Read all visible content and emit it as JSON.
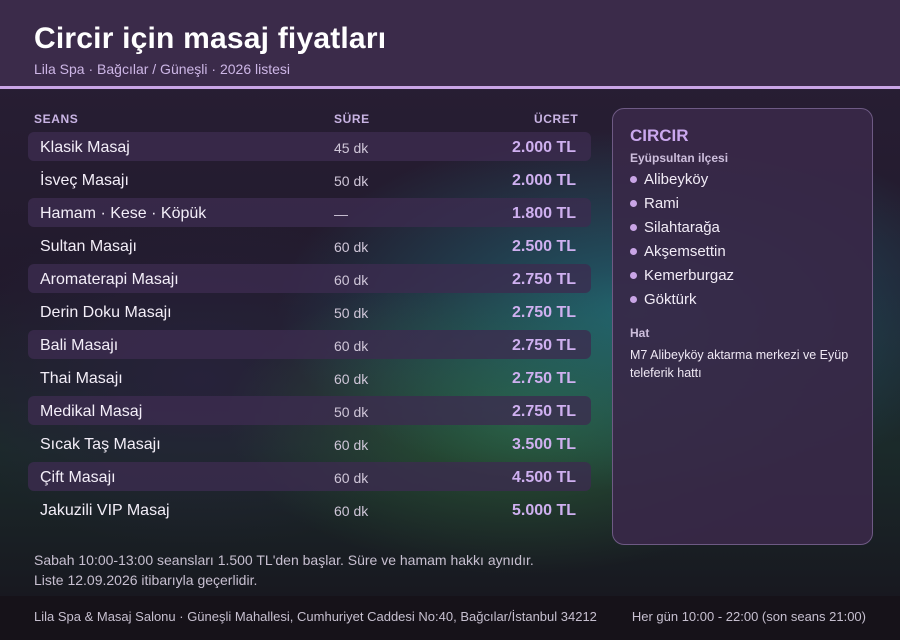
{
  "header": {
    "title": "Circir için masaj fiyatları",
    "subtitle": "Lila Spa · Bağcılar / Güneşli · 2026 listesi"
  },
  "table": {
    "columns": [
      "SEANS",
      "SÜRE",
      "ÜCRET"
    ],
    "rows": [
      {
        "name": "Klasik Masaj",
        "duration": "45 dk",
        "price": "2.000 TL"
      },
      {
        "name": "İsveç Masajı",
        "duration": "50 dk",
        "price": "2.000 TL"
      },
      {
        "name": "Hamam · Kese · Köpük",
        "duration": "—",
        "price": "1.800 TL"
      },
      {
        "name": "Sultan Masajı",
        "duration": "60 dk",
        "price": "2.500 TL"
      },
      {
        "name": "Aromaterapi Masajı",
        "duration": "60 dk",
        "price": "2.750 TL"
      },
      {
        "name": "Derin Doku Masajı",
        "duration": "50 dk",
        "price": "2.750 TL"
      },
      {
        "name": "Bali Masajı",
        "duration": "60 dk",
        "price": "2.750 TL"
      },
      {
        "name": "Thai Masajı",
        "duration": "60 dk",
        "price": "2.750 TL"
      },
      {
        "name": "Medikal Masaj",
        "duration": "50 dk",
        "price": "2.750 TL"
      },
      {
        "name": "Sıcak Taş Masajı",
        "duration": "60 dk",
        "price": "3.500 TL"
      },
      {
        "name": "Çift Masajı",
        "duration": "60 dk",
        "price": "4.500 TL"
      },
      {
        "name": "Jakuzili VIP Masaj",
        "duration": "60 dk",
        "price": "5.000 TL"
      }
    ]
  },
  "panel": {
    "title": "CIRCIR",
    "subtitle": "Eyüpsultan ilçesi",
    "neighborhoods": [
      "Alibeyköy",
      "Rami",
      "Silahtarağa",
      "Akşemsettin",
      "Kemerburgaz",
      "Göktürk"
    ],
    "line_label": "Hat",
    "line_text": "M7 Alibeyköy aktarma merkezi ve Eyüp teleferik hattı"
  },
  "notes": [
    "Sabah 10:00-13:00 seansları 1.500 TL'den başlar. Süre ve hamam hakkı aynıdır.",
    "Liste 12.09.2026 itibarıyla geçerlidir."
  ],
  "footer": {
    "address": "Lila Spa & Masaj Salonu · Güneşli Mahallesi, Cumhuriyet Caddesi No:40, Bağcılar/İstanbul 34212",
    "hours": "Her gün 10:00 - 22:00 (son seans 21:00)"
  },
  "colors": {
    "accent": "#c9a5e6",
    "header_bg": "#3b2b4a",
    "price": "#cfb0f0"
  }
}
